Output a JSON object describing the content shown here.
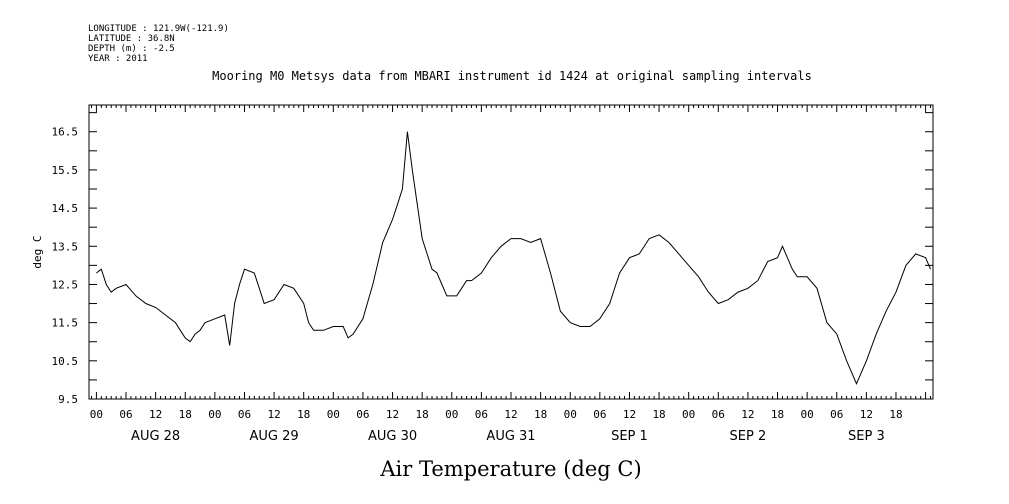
{
  "meta": {
    "longitude": "LONGITUDE : 121.9W(-121.9)",
    "latitude": "LATITUDE : 36.8N",
    "depth": "DEPTH (m) : -2.5",
    "year": "YEAR : 2011"
  },
  "chart_data": {
    "type": "line",
    "title": "Mooring M0 Metsys data from MBARI instrument id 1424 at original sampling intervals",
    "xlabel": "Air Temperature (deg C)",
    "ylabel": "deg C",
    "ylim": [
      9.5,
      17.2
    ],
    "xlim_hours": [
      -1.5,
      169.5
    ],
    "yticks": [
      "9.5",
      "10.5",
      "11.5",
      "12.5",
      "13.5",
      "14.5",
      "15.5",
      "16.5"
    ],
    "hour_ticks": [
      "00",
      "06",
      "12",
      "18",
      "00",
      "06",
      "12",
      "18",
      "00",
      "06",
      "12",
      "18",
      "00",
      "06",
      "12",
      "18",
      "00",
      "06",
      "12",
      "18",
      "00",
      "06",
      "12",
      "18",
      "00",
      "06",
      "12",
      "18"
    ],
    "day_labels": [
      "AUG 28",
      "AUG 29",
      "AUG 30",
      "AUG 31",
      "SEP  1",
      "SEP  2",
      "SEP  3"
    ],
    "grid": false,
    "series": [
      {
        "x": [
          0,
          1,
          2,
          3,
          4,
          6,
          8,
          10,
          12,
          14,
          16,
          17,
          18,
          19,
          20,
          21,
          22,
          24,
          26,
          27,
          28,
          29,
          30,
          32,
          33,
          34,
          36,
          38,
          40,
          42,
          43,
          44,
          46,
          48,
          50,
          51,
          52,
          54,
          56,
          58,
          60,
          61,
          62,
          63,
          64,
          66,
          68,
          69,
          70,
          71,
          72,
          73,
          74,
          75,
          76,
          78,
          80,
          82,
          84,
          86,
          88,
          90,
          92,
          94,
          96,
          98,
          100,
          102,
          104,
          106,
          108,
          110,
          112,
          114,
          116,
          118,
          120,
          122,
          124,
          126,
          128,
          130,
          132,
          134,
          136,
          138,
          139,
          140,
          141,
          142,
          144,
          146,
          148,
          150,
          152,
          154,
          156,
          158,
          160,
          162,
          164,
          166,
          168,
          169
        ],
        "y": [
          12.8,
          12.9,
          12.5,
          12.3,
          12.4,
          12.5,
          12.2,
          12.0,
          11.9,
          11.7,
          11.5,
          11.3,
          11.1,
          11.0,
          11.2,
          11.3,
          11.5,
          11.6,
          11.7,
          10.9,
          12.0,
          12.5,
          12.9,
          12.8,
          12.4,
          12.0,
          12.1,
          12.5,
          12.4,
          12.0,
          11.5,
          11.3,
          11.3,
          11.4,
          11.4,
          11.1,
          11.2,
          11.6,
          12.5,
          13.6,
          14.2,
          14.6,
          15.0,
          16.5,
          15.5,
          13.7,
          12.9,
          12.8,
          12.5,
          12.2,
          12.2,
          12.2,
          12.4,
          12.6,
          12.6,
          12.8,
          13.2,
          13.5,
          13.7,
          13.7,
          13.6,
          13.7,
          12.8,
          11.8,
          11.5,
          11.4,
          11.4,
          11.6,
          12.0,
          12.8,
          13.2,
          13.3,
          13.7,
          13.8,
          13.6,
          13.3,
          13.0,
          12.7,
          12.3,
          12.0,
          12.1,
          12.3,
          12.4,
          12.6,
          13.1,
          13.2,
          13.5,
          13.2,
          12.9,
          12.7,
          12.7,
          12.4,
          11.5,
          11.2,
          10.5,
          9.9,
          10.5,
          11.2,
          11.8,
          12.3,
          13.0,
          13.3,
          13.2,
          12.9
        ]
      }
    ]
  }
}
